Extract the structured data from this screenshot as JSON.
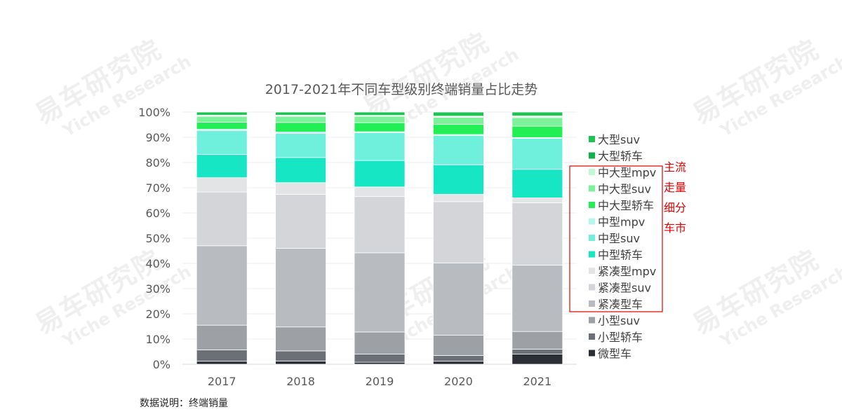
{
  "chart_data": {
    "type": "bar",
    "stacked": true,
    "percent": true,
    "title": "2017-2021年不同车型级别终端销量占比走势",
    "categories": [
      "2017",
      "2018",
      "2019",
      "2020",
      "2021"
    ],
    "yticks": [
      "0%",
      "10%",
      "20%",
      "30%",
      "40%",
      "50%",
      "60%",
      "70%",
      "80%",
      "90%",
      "100%"
    ],
    "ylim": [
      0,
      100
    ],
    "grid": true,
    "legend_position": "right",
    "series": [
      {
        "name": "微型车",
        "color": "#2b2f33",
        "values": [
          1.2,
          1.3,
          0.8,
          1.2,
          4.0
        ]
      },
      {
        "name": "小型轿车",
        "color": "#6b7077",
        "values": [
          4.5,
          4.0,
          3.2,
          2.3,
          2.0
        ]
      },
      {
        "name": "小型suv",
        "color": "#9da1a6",
        "values": [
          9.8,
          9.5,
          8.8,
          8.0,
          7.0
        ]
      },
      {
        "name": "紧凑型车",
        "color": "#b8bbbf",
        "values": [
          31.5,
          31.2,
          31.4,
          28.7,
          26.3
        ]
      },
      {
        "name": "紧凑型suv",
        "color": "#d3d5d8",
        "values": [
          21.3,
          21.4,
          22.3,
          24.3,
          24.7
        ]
      },
      {
        "name": "紧凑型mpv",
        "color": "#e3e4e6",
        "values": [
          5.7,
          4.6,
          3.8,
          2.9,
          2.0
        ]
      },
      {
        "name": "中型轿车",
        "color": "#16e6c4",
        "values": [
          9.2,
          10.0,
          10.5,
          11.7,
          11.3
        ]
      },
      {
        "name": "中型suv",
        "color": "#6ff0dc",
        "values": [
          9.5,
          9.5,
          11.0,
          11.6,
          12.3
        ]
      },
      {
        "name": "中型mpv",
        "color": "#b5f7ec",
        "values": [
          0.5,
          0.6,
          0.4,
          0.4,
          0.3
        ]
      },
      {
        "name": "中大型轿车",
        "color": "#22ef55",
        "values": [
          2.8,
          3.8,
          3.6,
          4.0,
          4.5
        ]
      },
      {
        "name": "中大型suv",
        "color": "#7cf29a",
        "values": [
          2.3,
          2.4,
          2.5,
          2.8,
          3.4
        ]
      },
      {
        "name": "中大型mpv",
        "color": "#c3f9d1",
        "values": [
          0.3,
          0.3,
          0.3,
          0.3,
          0.4
        ]
      },
      {
        "name": "大型轿车",
        "color": "#10b04b",
        "values": [
          0.2,
          0.2,
          0.1,
          0.2,
          0.3
        ]
      },
      {
        "name": "大型suv",
        "color": "#1dc454",
        "values": [
          1.2,
          1.2,
          1.3,
          1.6,
          1.5
        ]
      }
    ]
  },
  "annotation": {
    "lines": [
      "主流",
      "走量",
      "细分",
      "车市"
    ],
    "border_color": "#e00000"
  },
  "note": "数据说明：终端销量",
  "watermark": {
    "cn": "易车研究院",
    "en": "Yiche Research"
  }
}
